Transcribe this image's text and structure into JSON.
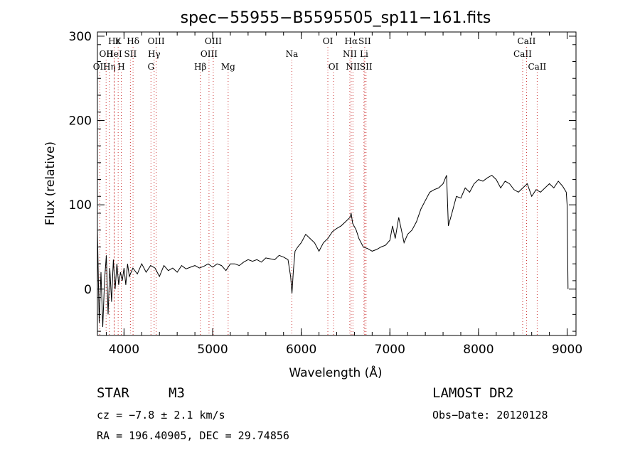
{
  "chart_data": {
    "type": "line",
    "title": "spec−55955−B5595505_sp11−161.fits",
    "xlabel": "Wavelength (Å)",
    "ylabel": "Flux (relative)",
    "xlim": [
      3700,
      9100
    ],
    "ylim": [
      -55,
      305
    ],
    "xticks": [
      4000,
      5000,
      6000,
      7000,
      8000,
      9000
    ],
    "yticks": [
      0,
      100,
      200,
      300
    ],
    "series": [
      {
        "x": [
          3700,
          3720,
          3740,
          3760,
          3780,
          3800,
          3820,
          3840,
          3860,
          3880,
          3900,
          3920,
          3940,
          3960,
          3980,
          4000,
          4020,
          4040,
          4060,
          4080,
          4100,
          4150,
          4200,
          4250,
          4300,
          4350,
          4400,
          4450,
          4500,
          4550,
          4600,
          4650,
          4700,
          4750,
          4800,
          4850,
          4900,
          4950,
          5000,
          5050,
          5100,
          5150,
          5200,
          5250,
          5300,
          5350,
          5400,
          5450,
          5500,
          5550,
          5600,
          5650,
          5700,
          5750,
          5800,
          5850,
          5880,
          5895,
          5910,
          5930,
          5960,
          6000,
          6050,
          6100,
          6150,
          6200,
          6250,
          6300,
          6350,
          6400,
          6450,
          6500,
          6550,
          6563,
          6580,
          6620,
          6650,
          6700,
          6750,
          6800,
          6850,
          6900,
          6950,
          7000,
          7030,
          7060,
          7100,
          7130,
          7160,
          7200,
          7250,
          7300,
          7350,
          7400,
          7450,
          7500,
          7550,
          7600,
          7620,
          7640,
          7660,
          7700,
          7750,
          7800,
          7850,
          7900,
          7950,
          8000,
          8050,
          8100,
          8150,
          8200,
          8250,
          8300,
          8350,
          8400,
          8450,
          8500,
          8550,
          8600,
          8650,
          8700,
          8750,
          8800,
          8850,
          8900,
          8950,
          8990,
          9000,
          9010
        ],
        "values": [
          70,
          -40,
          20,
          -45,
          10,
          40,
          -30,
          25,
          -15,
          35,
          0,
          30,
          5,
          20,
          10,
          25,
          5,
          30,
          15,
          20,
          25,
          18,
          30,
          20,
          28,
          25,
          15,
          28,
          22,
          25,
          20,
          28,
          24,
          26,
          28,
          25,
          27,
          30,
          26,
          30,
          28,
          22,
          30,
          30,
          28,
          32,
          35,
          33,
          35,
          32,
          37,
          36,
          35,
          40,
          38,
          35,
          15,
          -5,
          20,
          45,
          50,
          55,
          65,
          60,
          55,
          45,
          55,
          60,
          68,
          72,
          75,
          80,
          85,
          90,
          78,
          70,
          60,
          50,
          48,
          45,
          47,
          50,
          52,
          58,
          75,
          60,
          85,
          70,
          55,
          65,
          70,
          80,
          95,
          105,
          115,
          118,
          120,
          125,
          130,
          135,
          75,
          90,
          110,
          108,
          120,
          115,
          125,
          130,
          128,
          132,
          135,
          130,
          120,
          128,
          125,
          118,
          115,
          120,
          125,
          110,
          118,
          115,
          120,
          125,
          120,
          128,
          122,
          115,
          100,
          0
        ],
        "color": "#000000"
      }
    ],
    "lines": [
      {
        "wl": 3727,
        "label": "OII",
        "row": 2
      },
      {
        "wl": 3798,
        "label": "OII",
        "row": 1
      },
      {
        "wl": 3835,
        "label": "Hη",
        "row": 2
      },
      {
        "wl": 3889,
        "label": "Hz",
        "row": 0
      },
      {
        "wl": 3889,
        "label": "HeI",
        "row": 1
      },
      {
        "wl": 3934,
        "label": "K",
        "row": 0
      },
      {
        "wl": 3969,
        "label": "H",
        "row": 2
      },
      {
        "wl": 4072,
        "label": "SII",
        "row": 1
      },
      {
        "wl": 4102,
        "label": "Hδ",
        "row": 0
      },
      {
        "wl": 4340,
        "label": "Hγ",
        "row": 1
      },
      {
        "wl": 4304,
        "label": "G",
        "row": 2
      },
      {
        "wl": 4363,
        "label": "OIII",
        "row": 0
      },
      {
        "wl": 4861,
        "label": "Hβ",
        "row": 2
      },
      {
        "wl": 4959,
        "label": "OIII",
        "row": 1
      },
      {
        "wl": 5007,
        "label": "OIII",
        "row": 0
      },
      {
        "wl": 5175,
        "label": "Mg",
        "row": 2
      },
      {
        "wl": 5894,
        "label": "Na",
        "row": 1
      },
      {
        "wl": 6300,
        "label": "OI",
        "row": 0
      },
      {
        "wl": 6364,
        "label": "OI",
        "row": 2
      },
      {
        "wl": 6548,
        "label": "NII",
        "row": 1
      },
      {
        "wl": 6563,
        "label": "Hα",
        "row": 0
      },
      {
        "wl": 6583,
        "label": "NII",
        "row": 2
      },
      {
        "wl": 6708,
        "label": "Li",
        "row": 1
      },
      {
        "wl": 6716,
        "label": "SII",
        "row": 0
      },
      {
        "wl": 6731,
        "label": "SII",
        "row": 2
      },
      {
        "wl": 8498,
        "label": "CaII",
        "row": 1
      },
      {
        "wl": 8542,
        "label": "CaII",
        "row": 0
      },
      {
        "wl": 8662,
        "label": "CaII",
        "row": 2
      }
    ]
  },
  "info": {
    "object_class": "STAR",
    "subclass": "M3",
    "redshift": "cz = −7.8 ± 2.1 km/s",
    "coords": "RA = 196.40905, DEC =  29.74856",
    "survey": "LAMOST DR2",
    "obs_date": "Obs−Date: 20120128"
  }
}
